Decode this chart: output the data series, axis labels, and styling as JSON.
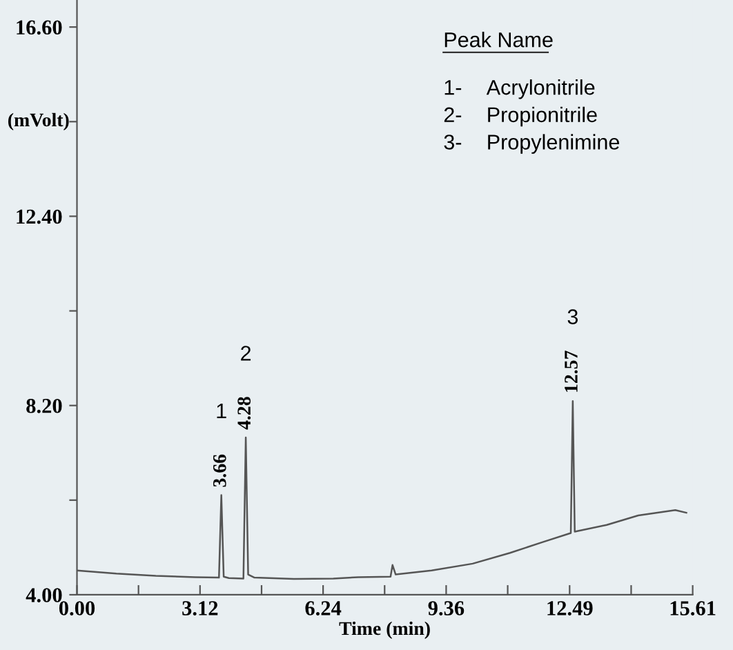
{
  "chart_data": {
    "type": "line",
    "xlabel": "Time (min)",
    "ylabel": "(mVolt)",
    "x": [
      0.0,
      1.0,
      2.0,
      3.0,
      3.6,
      3.66,
      3.72,
      3.85,
      4.22,
      4.28,
      4.34,
      4.5,
      5.5,
      6.5,
      7.13,
      7.95,
      8.0,
      8.08,
      8.99,
      10.03,
      10.98,
      11.78,
      12.52,
      12.57,
      12.62,
      13.43,
      14.23,
      15.17,
      15.45
    ],
    "series": [
      {
        "color": "#555555",
        "values": [
          4.54,
          4.47,
          4.42,
          4.39,
          4.38,
          6.21,
          4.4,
          4.37,
          4.36,
          7.49,
          4.45,
          4.38,
          4.35,
          4.36,
          4.39,
          4.4,
          4.66,
          4.45,
          4.54,
          4.69,
          4.93,
          5.16,
          5.37,
          8.3,
          5.4,
          5.55,
          5.76,
          5.88,
          5.82
        ]
      }
    ],
    "xlim": [
      0,
      15.61
    ],
    "ylim": [
      4.0,
      17.2
    ],
    "xticks": [
      {
        "value": 0,
        "label": "0.00"
      },
      {
        "value": 1.56,
        "label": null
      },
      {
        "value": 3.12,
        "label": "3.12"
      },
      {
        "value": 4.68,
        "label": null
      },
      {
        "value": 6.24,
        "label": "6.24"
      },
      {
        "value": 7.8,
        "label": null
      },
      {
        "value": 9.36,
        "label": "9.36"
      },
      {
        "value": 10.92,
        "label": null
      },
      {
        "value": 12.49,
        "label": "12.49"
      },
      {
        "value": 14.05,
        "label": null
      },
      {
        "value": 15.61,
        "label": "15.61"
      }
    ],
    "yticks": [
      {
        "value": 4,
        "label": "4.00"
      },
      {
        "value": 6.1,
        "label": null
      },
      {
        "value": 8.2,
        "label": "8.20"
      },
      {
        "value": 10.3,
        "label": null
      },
      {
        "value": 12.4,
        "label": "12.40"
      },
      {
        "value": 14.5,
        "label": null
      },
      {
        "value": 16.6,
        "label": "16.60"
      }
    ],
    "grid": false,
    "legend": false,
    "annotations": [
      {
        "text": "3.66",
        "x": 3.66,
        "y": 6.21
      },
      {
        "text": "4.28",
        "x": 4.28,
        "y": 7.49
      },
      {
        "text": "12.57",
        "x": 12.57,
        "y": 8.3
      },
      "1",
      "2",
      "3",
      "Peak Name",
      "1-",
      "Acrylonitrile",
      "2-",
      "Propionitrile",
      "3-",
      "Propylenimine"
    ]
  }
}
